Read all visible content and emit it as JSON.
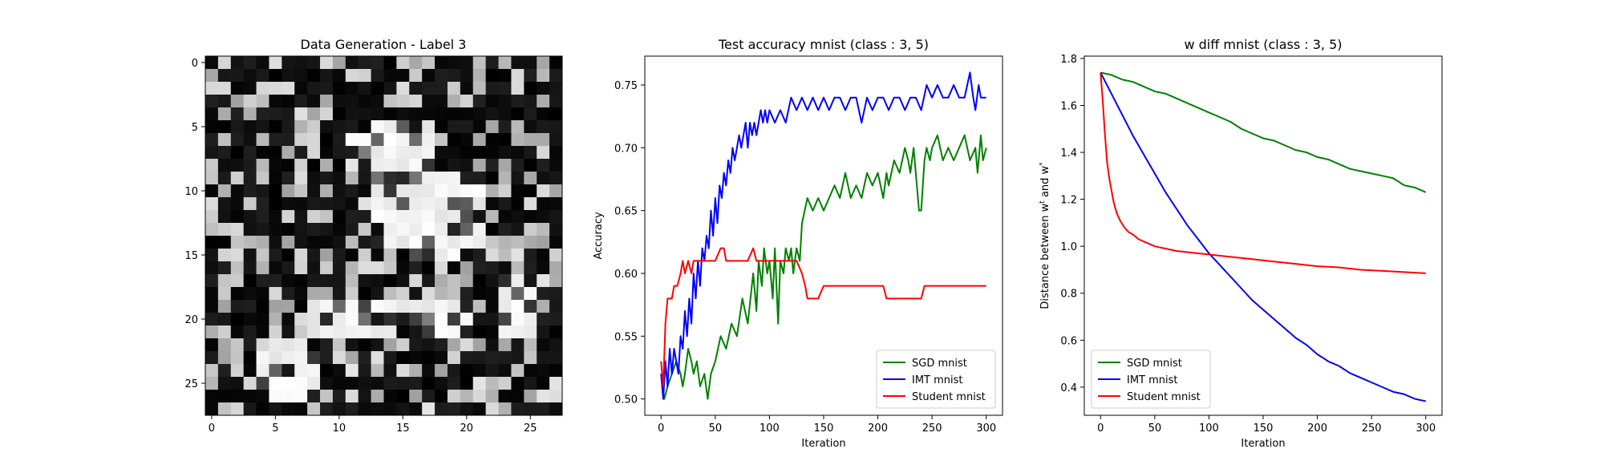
{
  "chart_data": [
    {
      "type": "heatmap",
      "title": "Data Generation - Label 3",
      "xlabel": "",
      "ylabel": "",
      "xlim": [
        -0.5,
        27.5
      ],
      "ylim": [
        27.5,
        -0.5
      ],
      "xticks": [
        0,
        5,
        10,
        15,
        20,
        25
      ],
      "yticks": [
        0,
        5,
        10,
        15,
        20,
        25
      ],
      "colormap": "gray",
      "grid": false,
      "size": [
        28,
        28
      ],
      "seed": 3
    },
    {
      "type": "line",
      "title": "Test accuracy mnist (class : 3, 5)",
      "xlabel": "Iteration",
      "ylabel": "Accuracy",
      "xlim": [
        -15,
        315
      ],
      "ylim": [
        0.487,
        0.773
      ],
      "xticks": [
        0,
        50,
        100,
        150,
        200,
        250,
        300
      ],
      "yticks": [
        0.5,
        0.55,
        0.6,
        0.65,
        0.7,
        0.75
      ],
      "ytick_labels": [
        "0.50",
        "0.55",
        "0.60",
        "0.65",
        "0.70",
        "0.75"
      ],
      "grid": false,
      "legend": "lower-right",
      "series": [
        {
          "name": "SGD mnist",
          "color": "#008000",
          "x": [
            0,
            3,
            6,
            10,
            14,
            18,
            20,
            22,
            25,
            28,
            30,
            33,
            36,
            40,
            43,
            46,
            50,
            55,
            60,
            65,
            70,
            75,
            80,
            85,
            88,
            90,
            93,
            95,
            98,
            100,
            103,
            105,
            108,
            110,
            113,
            115,
            118,
            120,
            122,
            125,
            128,
            130,
            135,
            140,
            145,
            150,
            155,
            160,
            165,
            170,
            175,
            180,
            185,
            190,
            195,
            200,
            205,
            208,
            210,
            215,
            220,
            225,
            228,
            230,
            233,
            235,
            238,
            240,
            243,
            245,
            248,
            250,
            255,
            260,
            265,
            270,
            275,
            280,
            285,
            290,
            292,
            295,
            297,
            300
          ],
          "values": [
            0.52,
            0.5,
            0.51,
            0.52,
            0.53,
            0.52,
            0.51,
            0.52,
            0.54,
            0.53,
            0.52,
            0.53,
            0.51,
            0.52,
            0.5,
            0.52,
            0.53,
            0.55,
            0.54,
            0.56,
            0.55,
            0.58,
            0.56,
            0.6,
            0.57,
            0.61,
            0.59,
            0.62,
            0.6,
            0.61,
            0.58,
            0.62,
            0.56,
            0.61,
            0.6,
            0.62,
            0.61,
            0.62,
            0.6,
            0.62,
            0.61,
            0.64,
            0.66,
            0.65,
            0.66,
            0.65,
            0.66,
            0.67,
            0.66,
            0.68,
            0.66,
            0.67,
            0.66,
            0.68,
            0.67,
            0.68,
            0.66,
            0.68,
            0.67,
            0.69,
            0.68,
            0.7,
            0.69,
            0.68,
            0.7,
            0.68,
            0.65,
            0.65,
            0.69,
            0.7,
            0.69,
            0.7,
            0.71,
            0.69,
            0.7,
            0.69,
            0.7,
            0.71,
            0.69,
            0.7,
            0.68,
            0.71,
            0.69,
            0.7
          ]
        },
        {
          "name": "IMT mnist",
          "color": "#0000ff",
          "x": [
            0,
            2,
            4,
            6,
            8,
            10,
            12,
            14,
            16,
            18,
            20,
            22,
            24,
            26,
            28,
            30,
            32,
            34,
            36,
            38,
            40,
            42,
            44,
            46,
            48,
            50,
            52,
            54,
            56,
            58,
            60,
            62,
            64,
            66,
            68,
            70,
            72,
            74,
            76,
            78,
            80,
            82,
            84,
            86,
            88,
            90,
            92,
            94,
            96,
            98,
            100,
            105,
            110,
            115,
            120,
            125,
            130,
            135,
            140,
            145,
            150,
            155,
            160,
            165,
            170,
            175,
            180,
            185,
            190,
            195,
            200,
            205,
            210,
            215,
            220,
            225,
            230,
            235,
            240,
            245,
            250,
            255,
            260,
            265,
            270,
            275,
            280,
            285,
            288,
            290,
            293,
            295,
            298,
            300
          ],
          "values": [
            0.52,
            0.5,
            0.53,
            0.51,
            0.54,
            0.52,
            0.54,
            0.53,
            0.52,
            0.55,
            0.54,
            0.57,
            0.55,
            0.58,
            0.56,
            0.6,
            0.58,
            0.61,
            0.59,
            0.62,
            0.61,
            0.63,
            0.62,
            0.65,
            0.63,
            0.66,
            0.64,
            0.67,
            0.66,
            0.68,
            0.67,
            0.69,
            0.68,
            0.7,
            0.69,
            0.7,
            0.71,
            0.7,
            0.71,
            0.72,
            0.7,
            0.72,
            0.71,
            0.72,
            0.71,
            0.72,
            0.73,
            0.72,
            0.73,
            0.72,
            0.73,
            0.72,
            0.73,
            0.72,
            0.74,
            0.73,
            0.74,
            0.73,
            0.74,
            0.73,
            0.74,
            0.73,
            0.74,
            0.74,
            0.73,
            0.74,
            0.74,
            0.72,
            0.74,
            0.73,
            0.74,
            0.74,
            0.73,
            0.74,
            0.74,
            0.73,
            0.74,
            0.74,
            0.73,
            0.75,
            0.74,
            0.75,
            0.74,
            0.74,
            0.75,
            0.74,
            0.74,
            0.76,
            0.74,
            0.73,
            0.75,
            0.74,
            0.74,
            0.74
          ]
        },
        {
          "name": "Student mnist",
          "color": "#ff0000",
          "x": [
            0,
            2,
            4,
            6,
            8,
            10,
            12,
            15,
            18,
            20,
            22,
            25,
            28,
            30,
            35,
            40,
            45,
            50,
            55,
            58,
            60,
            65,
            70,
            75,
            80,
            85,
            88,
            90,
            95,
            100,
            105,
            110,
            115,
            120,
            125,
            130,
            133,
            135,
            140,
            145,
            150,
            155,
            160,
            170,
            180,
            190,
            200,
            205,
            208,
            210,
            220,
            230,
            240,
            243,
            245,
            250,
            260,
            270,
            280,
            290,
            300
          ],
          "values": [
            0.53,
            0.51,
            0.56,
            0.58,
            0.58,
            0.58,
            0.59,
            0.59,
            0.6,
            0.61,
            0.6,
            0.61,
            0.6,
            0.61,
            0.61,
            0.61,
            0.61,
            0.61,
            0.62,
            0.62,
            0.61,
            0.61,
            0.61,
            0.61,
            0.61,
            0.62,
            0.61,
            0.61,
            0.61,
            0.61,
            0.61,
            0.61,
            0.61,
            0.61,
            0.61,
            0.6,
            0.59,
            0.58,
            0.58,
            0.58,
            0.59,
            0.59,
            0.59,
            0.59,
            0.59,
            0.59,
            0.59,
            0.59,
            0.58,
            0.58,
            0.58,
            0.58,
            0.58,
            0.59,
            0.59,
            0.59,
            0.59,
            0.59,
            0.59,
            0.59,
            0.59
          ]
        }
      ]
    },
    {
      "type": "line",
      "title": "w diff mnist (class : 3, 5)",
      "xlabel": "Iteration",
      "ylabel": "Distance between w",
      "ylabel_sup1": "t",
      "ylabel_mid": " and w",
      "ylabel_sup2": "*",
      "xlim": [
        -15,
        315
      ],
      "ylim": [
        0.28,
        1.81
      ],
      "xticks": [
        0,
        50,
        100,
        150,
        200,
        250,
        300
      ],
      "yticks": [
        0.4,
        0.6,
        0.8,
        1.0,
        1.2,
        1.4,
        1.6,
        1.8
      ],
      "ytick_labels": [
        "0.4",
        "0.6",
        "0.8",
        "1.0",
        "1.2",
        "1.4",
        "1.6",
        "1.8"
      ],
      "grid": false,
      "legend": "lower-left",
      "series": [
        {
          "name": "SGD mnist",
          "color": "#008000",
          "x": [
            0,
            10,
            20,
            30,
            40,
            50,
            60,
            70,
            80,
            90,
            100,
            110,
            120,
            130,
            140,
            150,
            160,
            170,
            180,
            190,
            200,
            210,
            220,
            230,
            240,
            250,
            260,
            270,
            280,
            290,
            300
          ],
          "values": [
            1.74,
            1.73,
            1.71,
            1.7,
            1.68,
            1.66,
            1.65,
            1.63,
            1.61,
            1.59,
            1.57,
            1.55,
            1.53,
            1.5,
            1.48,
            1.46,
            1.45,
            1.43,
            1.41,
            1.4,
            1.38,
            1.37,
            1.35,
            1.33,
            1.32,
            1.31,
            1.3,
            1.29,
            1.26,
            1.25,
            1.23
          ]
        },
        {
          "name": "IMT mnist",
          "color": "#0000ff",
          "x": [
            0,
            10,
            20,
            30,
            40,
            50,
            60,
            70,
            80,
            90,
            100,
            110,
            120,
            130,
            140,
            150,
            160,
            170,
            180,
            190,
            200,
            210,
            220,
            230,
            240,
            250,
            260,
            270,
            280,
            290,
            300
          ],
          "values": [
            1.74,
            1.65,
            1.56,
            1.47,
            1.39,
            1.31,
            1.23,
            1.16,
            1.09,
            1.03,
            0.97,
            0.92,
            0.87,
            0.82,
            0.77,
            0.73,
            0.69,
            0.65,
            0.61,
            0.58,
            0.54,
            0.51,
            0.49,
            0.46,
            0.44,
            0.42,
            0.4,
            0.38,
            0.37,
            0.35,
            0.34
          ]
        },
        {
          "name": "Student mnist",
          "color": "#ff0000",
          "x": [
            0,
            2,
            4,
            6,
            8,
            10,
            12,
            15,
            18,
            22,
            26,
            30,
            35,
            40,
            50,
            60,
            70,
            80,
            90,
            100,
            120,
            140,
            160,
            180,
            200,
            220,
            240,
            260,
            280,
            300
          ],
          "values": [
            1.74,
            1.62,
            1.48,
            1.36,
            1.29,
            1.24,
            1.19,
            1.14,
            1.11,
            1.08,
            1.06,
            1.05,
            1.03,
            1.02,
            1.0,
            0.99,
            0.98,
            0.975,
            0.97,
            0.965,
            0.955,
            0.945,
            0.935,
            0.925,
            0.915,
            0.91,
            0.9,
            0.895,
            0.89,
            0.885
          ]
        }
      ]
    }
  ]
}
